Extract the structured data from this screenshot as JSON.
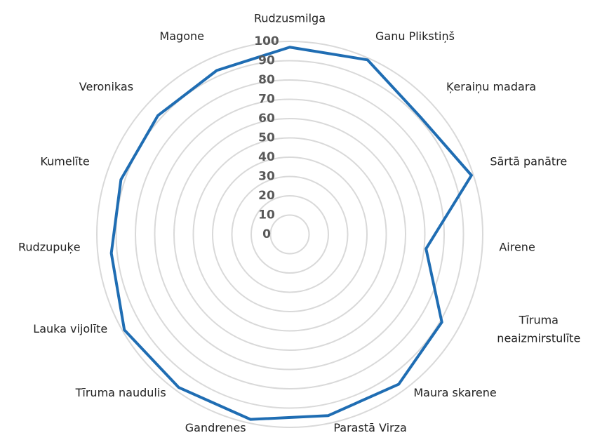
{
  "chart_data": {
    "type": "radar",
    "categories": [
      "Rudzusmilga",
      "Ganu Plikstiņš",
      "Ķeraiņu madara",
      "Sārtā panātre",
      "Airene",
      "Tīruma neaizmirstulīte",
      "Maura skarene",
      "Parastā Virza",
      "Gandrenes",
      "Tīruma naudulis",
      "Lauka vijolīte",
      "Rudzupuķe",
      "Kumelīte",
      "Veronikas",
      "Magone"
    ],
    "values": [
      97,
      99,
      91,
      99,
      71,
      91,
      96,
      96,
      98,
      98,
      99,
      93,
      92,
      92,
      93
    ],
    "color": "#1f6db3",
    "ylim": [
      0,
      100
    ],
    "yticks": [
      0,
      10,
      20,
      30,
      40,
      50,
      60,
      70,
      80,
      90,
      100
    ],
    "grid": true
  }
}
